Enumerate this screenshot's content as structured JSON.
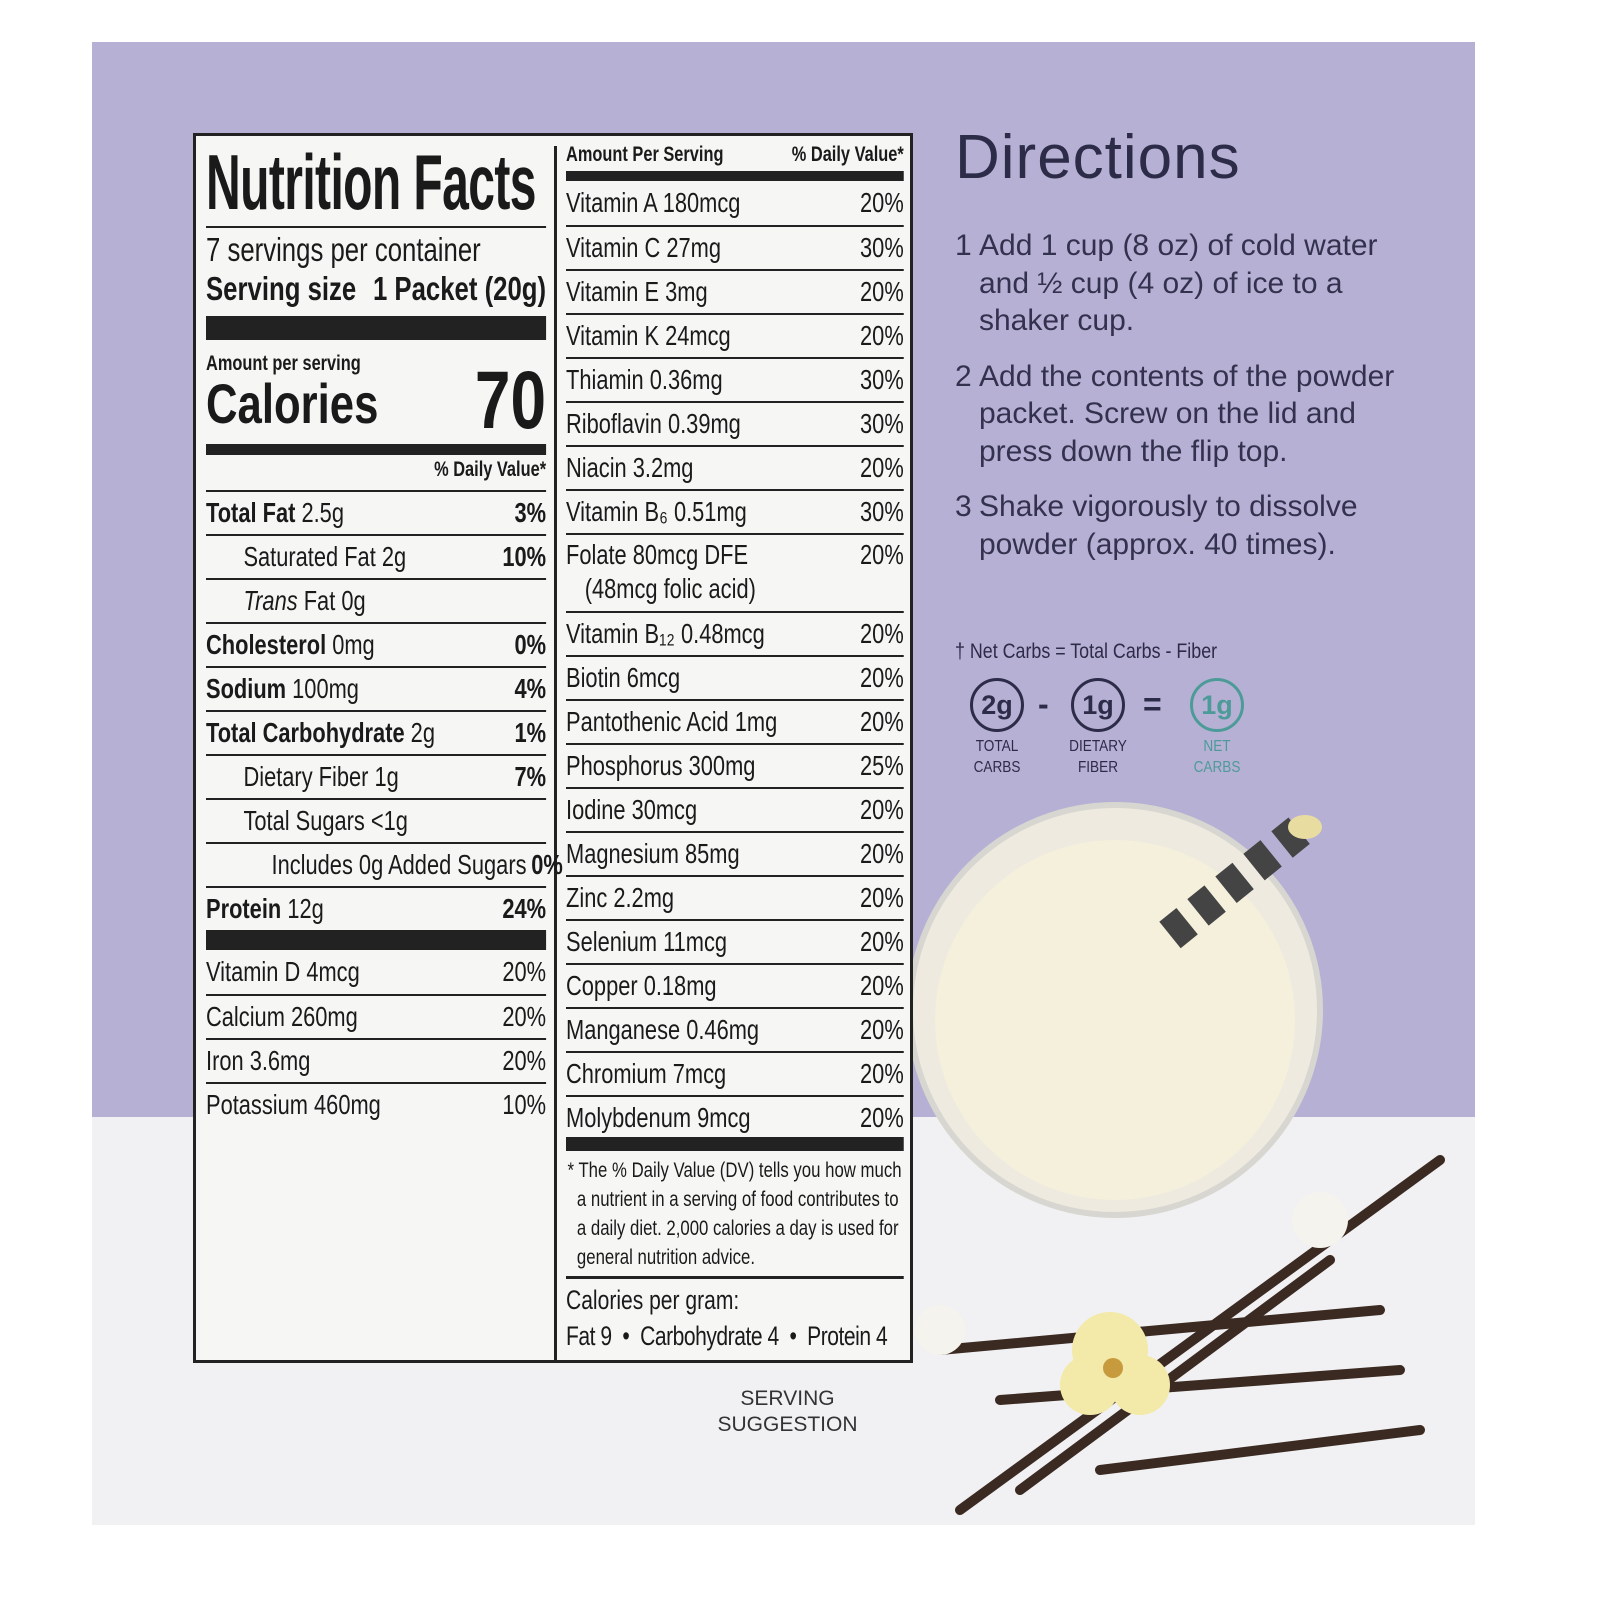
{
  "nutrition_facts": {
    "title": "Nutrition Facts",
    "servings": "7 servings per container",
    "serving_size_label": "Serving size",
    "serving_size_value": "1 Packet (20g)",
    "amount_per_serving": "Amount per serving",
    "calories_label": "Calories",
    "calories_value": "70",
    "dv_header": "% Daily Value*",
    "left_rows": [
      {
        "name": "Total Fat",
        "amount": "2.5g",
        "dv": "3%",
        "bold": true,
        "indent": 0
      },
      {
        "name": "Saturated Fat",
        "amount": "2g",
        "dv": "10%",
        "bold": false,
        "indent": 1,
        "dv_bold": true
      },
      {
        "name": "Trans",
        "amount": "Fat 0g",
        "dv": "",
        "bold": false,
        "indent": 1,
        "italic": true
      },
      {
        "name": "Cholesterol",
        "amount": "0mg",
        "dv": "0%",
        "bold": true,
        "indent": 0
      },
      {
        "name": "Sodium",
        "amount": "100mg",
        "dv": "4%",
        "bold": true,
        "indent": 0
      },
      {
        "name": "Total Carbohydrate",
        "amount": "2g",
        "dv": "1%",
        "bold": true,
        "indent": 0
      },
      {
        "name": "Dietary Fiber",
        "amount": "1g",
        "dv": "7%",
        "bold": false,
        "indent": 1,
        "dv_bold": true
      },
      {
        "name": "Total Sugars",
        "amount": "<1g",
        "dv": "",
        "bold": false,
        "indent": 1
      },
      {
        "name": "Includes 0g Added Sugars",
        "amount": "",
        "dv": "0%",
        "bold": false,
        "indent": 2,
        "dv_bold": true
      },
      {
        "name": "Protein",
        "amount": "12g",
        "dv": "24%",
        "bold": true,
        "indent": 0
      }
    ],
    "left_vitamins": [
      {
        "name": "Vitamin D 4mcg",
        "dv": "20%"
      },
      {
        "name": "Calcium 260mg",
        "dv": "20%"
      },
      {
        "name": "Iron 3.6mg",
        "dv": "20%"
      },
      {
        "name": "Potassium 460mg",
        "dv": "10%"
      }
    ],
    "right_header_left": "Amount Per Serving",
    "right_header_right": "% Daily Value*",
    "right_rows": [
      {
        "name": "Vitamin A 180mcg",
        "dv": "20%"
      },
      {
        "name": "Vitamin C 27mg",
        "dv": "30%"
      },
      {
        "name": "Vitamin E 3mg",
        "dv": "20%"
      },
      {
        "name": "Vitamin K 24mcg",
        "dv": "20%"
      },
      {
        "name": "Thiamin 0.36mg",
        "dv": "30%"
      },
      {
        "name": "Riboflavin 0.39mg",
        "dv": "30%"
      },
      {
        "name": "Niacin 3.2mg",
        "dv": "20%"
      },
      {
        "name": "Vitamin B₆ 0.51mg",
        "dv": "30%"
      },
      {
        "name": "Folate 80mcg DFE",
        "sub": "(48mcg folic acid)",
        "dv": "20%"
      },
      {
        "name": "Vitamin B₁₂ 0.48mcg",
        "dv": "20%"
      },
      {
        "name": "Biotin 6mcg",
        "dv": "20%"
      },
      {
        "name": "Pantothenic Acid 1mg",
        "dv": "20%"
      },
      {
        "name": "Phosphorus 300mg",
        "dv": "25%"
      },
      {
        "name": "Iodine 30mcg",
        "dv": "20%"
      },
      {
        "name": "Magnesium 85mg",
        "dv": "20%"
      },
      {
        "name": "Zinc 2.2mg",
        "dv": "20%"
      },
      {
        "name": "Selenium 11mcg",
        "dv": "20%"
      },
      {
        "name": "Copper 0.18mg",
        "dv": "20%"
      },
      {
        "name": "Manganese 0.46mg",
        "dv": "20%"
      },
      {
        "name": "Chromium 7mcg",
        "dv": "20%"
      },
      {
        "name": "Molybdenum 9mcg",
        "dv": "20%"
      }
    ],
    "footnote": "* The % Daily Value (DV) tells you how much a nutrient in a serving of food contributes to a daily diet. 2,000 calories a day is used for general nutrition advice.",
    "calories_per_gram": "Calories per gram:",
    "cpg_values": "Fat 9  •  Carbohydrate 4  •  Protein 4"
  },
  "directions": {
    "title": "Directions",
    "steps": [
      {
        "n": "1",
        "text": "Add 1 cup (8 oz) of cold water and ½ cup (4 oz) of ice to a shaker cup."
      },
      {
        "n": "2",
        "text": "Add the contents of the powder packet. Screw on the lid and press down the flip top."
      },
      {
        "n": "3",
        "text": "Shake vigorously to dissolve powder (approx. 40 times)."
      }
    ]
  },
  "net_carbs": {
    "formula": "† Net Carbs = Total Carbs - Fiber",
    "total_carbs": "2g",
    "total_carbs_label": "TOTAL CARBS",
    "minus": "-",
    "fiber": "1g",
    "fiber_label": "DIETARY FIBER",
    "equals": "=",
    "net": "1g",
    "net_label": "NET CARBS",
    "net_color": "#4d9b98"
  },
  "serving_suggestion": "SERVING SUGGESTION",
  "colors": {
    "panel": "#b7b0d5",
    "text_dark": "#2c2b48"
  }
}
